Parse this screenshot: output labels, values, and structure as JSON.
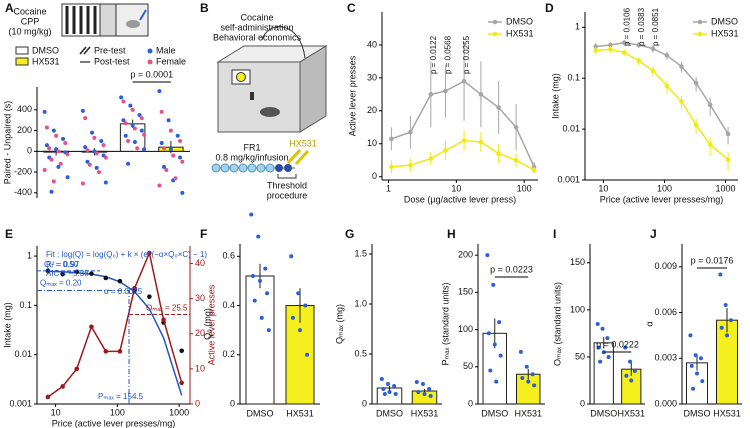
{
  "chart_data": [
    {
      "type": "strip",
      "panel": "A",
      "title": [
        "Cocaine",
        "CPP",
        "(10 mg/kg)"
      ],
      "ylabel": "Paired - Unpaired (s)",
      "ylim": [
        -450,
        620
      ],
      "yticks": [
        -400,
        -200,
        0,
        200,
        400
      ],
      "values": [
        0,
        -5,
        265,
        40
      ],
      "errors": [
        40,
        35,
        40,
        60
      ],
      "bar_colors": [
        "#ffffff",
        "#f5ef1e",
        "#ffffff",
        "#f5ef1e"
      ],
      "fill_legend": [
        {
          "name": "DMSO",
          "color": "#ffffff"
        },
        {
          "name": "HX531",
          "color": "#f5ef1e"
        }
      ],
      "test_legend": [
        "Pre-test",
        "Post-test"
      ],
      "series": [
        {
          "name": "Male",
          "color": "#2b5fd9",
          "values": [
            [
              380,
              200,
              120,
              60,
              20,
              -10,
              -60,
              -150,
              -250,
              -390
            ],
            [
              390,
              180,
              100,
              40,
              0,
              -40,
              -100,
              -160,
              -300
            ],
            [
              520,
              440,
              350,
              300,
              250,
              200,
              150,
              90,
              20,
              -120
            ],
            [
              580,
              300,
              150,
              80,
              20,
              -60,
              -150,
              -280,
              -400
            ]
          ]
        },
        {
          "name": "Female",
          "color": "#e8508a",
          "values": [
            [
              230,
              150,
              80,
              30,
              0,
              -30,
              -80,
              -120,
              -180,
              -290
            ],
            [
              320,
              130,
              60,
              10,
              -20,
              -60,
              -130,
              -200,
              -310
            ],
            [
              480,
              400,
              320,
              270,
              220,
              160,
              100,
              30
            ],
            [
              380,
              200,
              100,
              30,
              -40,
              -100,
              -180,
              -260,
              -330
            ]
          ]
        }
      ],
      "annotation": "p = 0.0001"
    },
    {
      "type": "diagram",
      "panel": "B",
      "title": [
        "Cocaine",
        "self-administration",
        "Behavioral economics"
      ],
      "schedule": "FR1",
      "dose": "0.8 mg/kg/infusion",
      "drug": "HX531",
      "procedure": [
        "Threshold",
        "procedure"
      ]
    },
    {
      "type": "line",
      "panel": "C",
      "xlabel": "Dose (µg/active lever press)",
      "ylabel": "Active lever presses",
      "log_x": true,
      "log_y": false,
      "xlim": [
        0.8,
        160
      ],
      "xticks": [
        1,
        10,
        100
      ],
      "ylim": [
        -1,
        50
      ],
      "yticks": [
        0,
        10,
        20,
        30,
        40
      ],
      "x": [
        1.1,
        2.1,
        4.2,
        6.9,
        13,
        23,
        42,
        76,
        140
      ],
      "series": [
        {
          "name": "DMSO",
          "color": "#a6a6a6",
          "mode": "line+markers",
          "values": [
            11.5,
            13.5,
            25,
            26,
            29,
            25,
            21,
            15,
            3
          ],
          "errors": [
            3.5,
            5,
            10,
            8,
            12,
            10,
            8,
            7,
            1.5
          ]
        },
        {
          "name": "HX531",
          "color": "#f0ea10",
          "mode": "line+markers",
          "values": [
            3,
            3.5,
            5.5,
            8,
            11,
            10.5,
            7,
            5,
            2
          ],
          "errors": [
            2,
            2,
            2,
            3,
            3,
            3,
            3,
            2,
            1
          ]
        }
      ],
      "annotations": [
        "p = 0.0122",
        "p = 0.0568",
        "p = 0.0255"
      ]
    },
    {
      "type": "line",
      "panel": "D",
      "xlabel": "Price (active lever presses/mg)",
      "ylabel": "Intake (mg)",
      "log_x": true,
      "log_y": true,
      "xlim": [
        5,
        1600
      ],
      "xticks": [
        10,
        100,
        1000
      ],
      "ylim": [
        0.001,
        2
      ],
      "yticks": [
        0.001,
        0.01,
        0.1,
        1
      ],
      "x": [
        7.5,
        13,
        22,
        38,
        65,
        110,
        190,
        330,
        560,
        1100
      ],
      "series": [
        {
          "name": "DMSO",
          "color": "#a6a6a6",
          "mode": "line+markers",
          "values": [
            0.42,
            0.45,
            0.5,
            0.45,
            0.38,
            0.28,
            0.17,
            0.08,
            0.03,
            0.008
          ],
          "errors": [
            0.06,
            0.06,
            0.07,
            0.06,
            0.06,
            0.05,
            0.04,
            0.025,
            0.012,
            0.003
          ]
        },
        {
          "name": "HX531",
          "color": "#f0ea10",
          "mode": "line+markers",
          "values": [
            0.35,
            0.37,
            0.32,
            0.22,
            0.14,
            0.07,
            0.035,
            0.012,
            0.005,
            0.0025
          ],
          "errors": [
            0.06,
            0.06,
            0.05,
            0.04,
            0.03,
            0.02,
            0.01,
            0.004,
            0.002,
            0.001
          ]
        }
      ],
      "annotations": [
        "p = 0.0106",
        "p = 0.0383",
        "p = 0.0851"
      ]
    },
    {
      "type": "line",
      "panel": "E",
      "xlabel": "Price (active lever presses/mg)",
      "ylabel": "Intake (mg)",
      "y2label": "Active lever presses",
      "log_x": true,
      "log_y": true,
      "xlim": [
        5,
        1500
      ],
      "xticks": [
        10,
        100,
        1000
      ],
      "ylim": [
        0.001,
        1.6
      ],
      "yticks": [
        0.001,
        0.01,
        0.1,
        1
      ],
      "y2lim": [
        0,
        45
      ],
      "y2ticks": [
        0,
        10,
        20,
        30,
        40
      ],
      "x": [
        7.5,
        13,
        22,
        38,
        65,
        110,
        190,
        330,
        560,
        1100
      ],
      "series": [
        {
          "color": "#2255cc",
          "mode": "line",
          "values": [
            0.49,
            0.48,
            0.46,
            0.43,
            0.38,
            0.3,
            0.19,
            0.085,
            0.022,
            0.0015
          ]
        },
        {
          "color": "#111111",
          "mode": "markers",
          "values": [
            0.5,
            0.43,
            0.48,
            0.44,
            0.36,
            0.31,
            0.2,
            0.15,
            0.045,
            0.012
          ]
        },
        {
          "color": "#a01818",
          "mode": "line+markers",
          "axis": "y2",
          "values": [
            2,
            5,
            10,
            22,
            15,
            15,
            33,
            43,
            24,
            6
          ]
        }
      ],
      "fit_text": [
        "Fit : log(Q) = log(Q₀) + k × (e^(−α×Q₀×C) − 1)",
        "R² = 0.97",
        "AIC = −5.38",
        "α = 0.0025"
      ],
      "reference_lines": [
        {
          "axis": "y",
          "value": 0.5,
          "label": "Q₀ = 0.50"
        },
        {
          "axis": "y",
          "value": 0.2,
          "label": "Qₘₐₓ = 0.20"
        },
        {
          "axis": "y2",
          "value": 25.5,
          "label": "Oₘₐₓ = 25.5"
        },
        {
          "axis": "x",
          "value": 154.5,
          "label": "Pₘₐₓ = 154.5"
        }
      ]
    },
    {
      "type": "bar",
      "panel": "F",
      "ylabel": "Q₀ (mg)",
      "categories": [
        "DMSO",
        "HX531"
      ],
      "ylim": [
        0,
        0.65
      ],
      "yticks": [
        0,
        0.2,
        0.4,
        0.6
      ],
      "values": [
        0.52,
        0.4
      ],
      "errors": [
        0.05,
        0.07
      ],
      "colors": [
        "#ffffff",
        "#f5ef1e"
      ],
      "point_color": "#2b5fd9",
      "points": [
        [
          0.77,
          0.68,
          0.55,
          0.52,
          0.5,
          0.45,
          0.42,
          0.35,
          0.3
        ],
        [
          0.6,
          0.45,
          0.4,
          0.35,
          0.3,
          0.2
        ]
      ]
    },
    {
      "type": "bar",
      "panel": "G",
      "ylabel": "Qₘₐₓ (mg)",
      "categories": [
        "DMSO",
        "HX531"
      ],
      "ylim": [
        0,
        1.6
      ],
      "yticks": [
        0,
        0.5,
        {
          "value": 1,
          "label": "1.0"
        },
        1.5
      ],
      "values": [
        0.16,
        0.13
      ],
      "errors": [
        0.02,
        0.02
      ],
      "colors": [
        "#ffffff",
        "#f5ef1e"
      ],
      "point_color": "#2b5fd9",
      "points": [
        [
          0.25,
          0.2,
          0.18,
          0.15,
          0.12,
          0.1,
          0.1
        ],
        [
          0.22,
          0.2,
          0.15,
          0.12,
          0.1,
          0.08
        ]
      ]
    },
    {
      "type": "bar",
      "panel": "H",
      "ylabel": "Pₘₐₓ (standard units)",
      "categories": [
        "DMSO",
        "HX531"
      ],
      "ylim": [
        0,
        215
      ],
      "yticks": [
        0,
        50,
        100,
        150,
        200
      ],
      "values": [
        95,
        40
      ],
      "errors": [
        20,
        7
      ],
      "colors": [
        "#ffffff",
        "#f5ef1e"
      ],
      "point_color": "#2b5fd9",
      "points": [
        [
          200,
          160,
          110,
          95,
          80,
          65,
          45,
          30
        ],
        [
          70,
          50,
          40,
          35,
          30,
          25
        ]
      ],
      "annotation": "p = 0.0223"
    },
    {
      "type": "bar",
      "panel": "I",
      "ylabel": "Oₘₐₓ (standard units)",
      "categories": [
        "DMSO",
        "HX531"
      ],
      "ylim": [
        0,
        170
      ],
      "yticks": [
        0,
        50,
        100,
        150
      ],
      "values": [
        65,
        37
      ],
      "errors": [
        6,
        7
      ],
      "colors": [
        "#ffffff",
        "#f5ef1e"
      ],
      "point_color": "#2b5fd9",
      "points": [
        [
          85,
          80,
          70,
          60,
          55,
          50,
          45
        ],
        [
          60,
          45,
          35,
          30,
          25
        ]
      ],
      "annotation": "p = 0.0222"
    },
    {
      "type": "bar",
      "panel": "J",
      "ylabel": "α",
      "categories": [
        "DMSO",
        "HX531"
      ],
      "ylim": [
        0,
        0.0105
      ],
      "yticks": [
        {
          "value": 0,
          "label": "0.000"
        },
        0.003,
        0.006,
        0.009
      ],
      "values": [
        0.0027,
        0.0055
      ],
      "errors": [
        0.0005,
        0.0008
      ],
      "colors": [
        "#ffffff",
        "#f5ef1e"
      ],
      "point_color": "#2b5fd9",
      "points": [
        [
          0.0045,
          0.0032,
          0.003,
          0.0025,
          0.002,
          0.0015,
          0.001
        ],
        [
          0.0085,
          0.0065,
          0.0055,
          0.005,
          0.0045
        ]
      ],
      "annotation": "p = 0.0176"
    }
  ]
}
